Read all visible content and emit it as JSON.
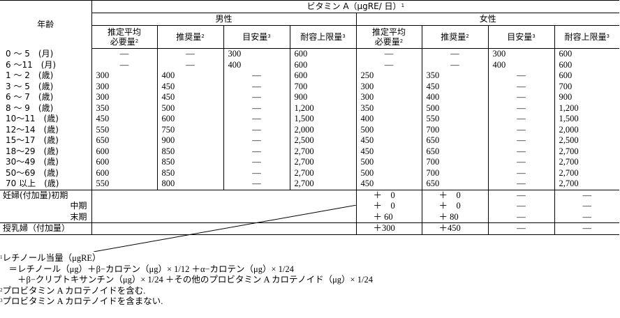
{
  "header": {
    "age_label": "年齢",
    "vitamin_title": "ビタミン A（μgRE/ 日）",
    "vitamin_sup": "1",
    "male": "男性",
    "female": "女性",
    "cols": [
      {
        "line1": "推定平均",
        "line2": "必要量",
        "sup": "2"
      },
      {
        "line1": "推奨量",
        "line2": "",
        "sup": "2"
      },
      {
        "line1": "目安量",
        "line2": "",
        "sup": "3"
      },
      {
        "line1": "耐容上限量",
        "line2": "",
        "sup": "3"
      }
    ]
  },
  "dash": "—",
  "rows": [
    {
      "age": "0 ～ 5　(月)",
      "m": [
        "—",
        "—",
        "300",
        "600"
      ],
      "f": [
        "—",
        "—",
        "300",
        "600"
      ]
    },
    {
      "age": "6 ～11　(月)",
      "m": [
        "—",
        "—",
        "400",
        "600"
      ],
      "f": [
        "—",
        "—",
        "400",
        "600"
      ]
    },
    {
      "age": "1 ～ 2　(歳)",
      "m": [
        "300",
        "400",
        "—",
        "600"
      ],
      "f": [
        "250",
        "350",
        "—",
        "600"
      ]
    },
    {
      "age": "3 ～ 5　(歳)",
      "m": [
        "300",
        "450",
        "—",
        "700"
      ],
      "f": [
        "300",
        "450",
        "—",
        "700"
      ]
    },
    {
      "age": "6 ～ 7　(歳)",
      "m": [
        "300",
        "450",
        "—",
        "900"
      ],
      "f": [
        "300",
        "400",
        "—",
        "900"
      ]
    },
    {
      "age": "8 ～ 9　(歳)",
      "m": [
        "350",
        "500",
        "—",
        "1,200"
      ],
      "f": [
        "350",
        "500",
        "—",
        "1,200"
      ]
    },
    {
      "age": "10～11　(歳)",
      "m": [
        "450",
        "600",
        "—",
        "1,500"
      ],
      "f": [
        "400",
        "550",
        "—",
        "1,500"
      ]
    },
    {
      "age": "12～14　(歳)",
      "m": [
        "550",
        "750",
        "—",
        "2,000"
      ],
      "f": [
        "500",
        "700",
        "—",
        "2,000"
      ]
    },
    {
      "age": "15～17　(歳)",
      "m": [
        "650",
        "900",
        "—",
        "2,500"
      ],
      "f": [
        "450",
        "650",
        "—",
        "2,500"
      ]
    },
    {
      "age": "18～29　(歳)",
      "m": [
        "600",
        "850",
        "—",
        "2,700"
      ],
      "f": [
        "450",
        "650",
        "—",
        "2,700"
      ]
    },
    {
      "age": "30～49　(歳)",
      "m": [
        "600",
        "850",
        "—",
        "2,700"
      ],
      "f": [
        "500",
        "700",
        "—",
        "2,700"
      ]
    },
    {
      "age": "50～69　(歳)",
      "m": [
        "600",
        "850",
        "—",
        "2,700"
      ],
      "f": [
        "500",
        "700",
        "—",
        "2,700"
      ]
    },
    {
      "age": "70 以上　(歳)",
      "m": [
        "550",
        "800",
        "—",
        "2,700"
      ],
      "f": [
        "450",
        "650",
        "—",
        "2,700"
      ]
    }
  ],
  "pregnant": {
    "label_main": "妊婦(付加量)",
    "rows": [
      {
        "label": "初期",
        "f": [
          "＋　0",
          "＋　0",
          "—",
          "—"
        ]
      },
      {
        "label": "中期",
        "f": [
          "＋　0",
          "＋　0",
          "—",
          "—"
        ]
      },
      {
        "label": "末期",
        "f": [
          "＋ 60",
          "＋ 80",
          "—",
          "—"
        ]
      }
    ]
  },
  "lactating": {
    "label": "授乳婦（付加量）",
    "f": [
      "＋300",
      "＋450",
      "—",
      "—"
    ]
  },
  "notes": [
    {
      "sup": "1",
      "text": "レチノール当量（μgRE）"
    },
    {
      "sup": "",
      "text": "　＝レチノール（μg）＋β−カロテン（μg）× 1/12 ＋α−カロテン（μg）× 1/24"
    },
    {
      "sup": "",
      "text": "　　＋β−クリプトキサンチン（μg）× 1/24 ＋その他のプロビタミン A カロテノイド（μg）× 1/24"
    },
    {
      "sup": "2",
      "text": "プロビタミン A カロテノイドを含む."
    },
    {
      "sup": "3",
      "text": "プロビタミン A カロテノイドを含まない."
    }
  ]
}
